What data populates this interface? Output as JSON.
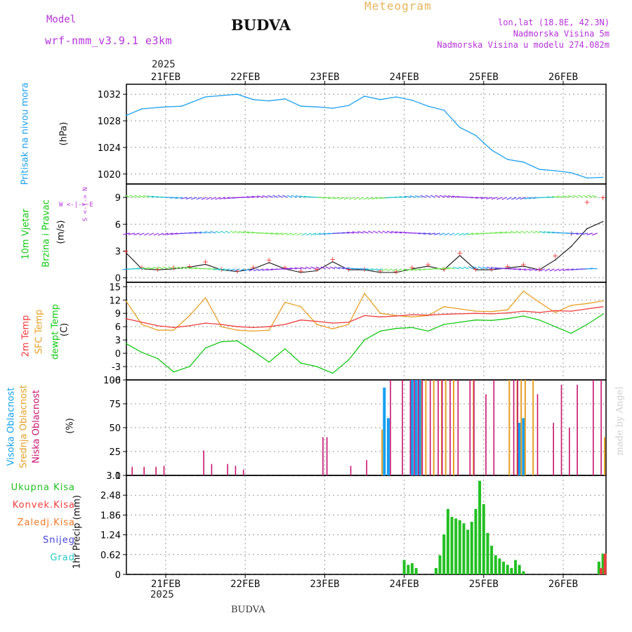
{
  "header": {
    "model_label": "Model",
    "model_name": "wrf-nmm_v3.9.1  e3km",
    "city": "BUDVA",
    "product": "Meteogram",
    "coords": "lon,lat (18.8E, 42.3N)",
    "elevation": "Nadmorska Visina 5m",
    "model_elevation": "Nadmorska Visina u modelu 274.082m",
    "footer_city": "BUDVA",
    "watermark": "made by Angel"
  },
  "colors": {
    "pressure": "#1ea0f0",
    "temp2m": "#f03c3c",
    "sfc": "#e6a028",
    "dew": "#14c814",
    "high_cloud": "#14a0f0",
    "mid_cloud": "#e6a028",
    "low_cloud": "#c8146e",
    "precip": "#22c022",
    "conv": "#f03c3c",
    "freezing": "#f07828",
    "snow": "#4646dc",
    "graupel": "#28c8c8",
    "label_purple": "#b432dc"
  },
  "axis": {
    "year": "2025",
    "days": [
      "21FEB",
      "22FEB",
      "23FEB",
      "24FEB",
      "25FEB",
      "26FEB"
    ]
  },
  "panels": {
    "pressure": {
      "label": "Pritisak na nivou mora",
      "unit": "(hPa)"
    },
    "wind": {
      "label1": "10m Vjetar",
      "label2": "Brzina i Pravac",
      "unit": "(m/s)",
      "compass": "W <-|-> E",
      "compass_vert": "S <-|-> N"
    },
    "temp": {
      "label1": "2m Temp",
      "label2": "SFC Temp",
      "label3": "dewpt Temp",
      "unit": "(C)"
    },
    "cloud": {
      "label1": "Visoka Oblacnost",
      "label2": "Srednja Oblacnost",
      "label3": "Niska Oblacnost",
      "unit": "(%)"
    },
    "precip": {
      "unit": "1hr Precip (mm)",
      "legend": [
        "Ukupna Kisa",
        "Konvek.Kisa",
        "Zaledj.Kisa",
        "Snijeg",
        "Grad"
      ]
    }
  },
  "chart_data": [
    {
      "type": "line",
      "title": "Pritisak na nivou mora",
      "ylabel": "(hPa)",
      "ylim": [
        1018.5,
        1033.5
      ],
      "yticks": [
        1020,
        1024,
        1028,
        1032
      ],
      "x": [
        20.5,
        20.7,
        20.9,
        21.0,
        21.2,
        21.5,
        21.7,
        21.9,
        22.1,
        22.3,
        22.5,
        22.7,
        22.9,
        23.1,
        23.3,
        23.5,
        23.7,
        23.9,
        24.1,
        24.3,
        24.5,
        24.7,
        24.9,
        25.1,
        25.3,
        25.5,
        25.7,
        25.9,
        26.1,
        26.3,
        26.5
      ],
      "values": [
        1028.8,
        1029.8,
        1030.0,
        1030.1,
        1030.2,
        1031.6,
        1031.8,
        1032.0,
        1031.2,
        1031.0,
        1031.3,
        1030.2,
        1030.1,
        1029.9,
        1030.3,
        1031.7,
        1031.2,
        1031.6,
        1031.1,
        1030.2,
        1029.6,
        1027.0,
        1025.8,
        1023.6,
        1022.2,
        1021.8,
        1020.7,
        1020.5,
        1020.2,
        1019.4,
        1019.5
      ]
    },
    {
      "type": "line",
      "title": "10m Vjetar Brzina i Pravac",
      "ylabel": "(m/s)",
      "ylim": [
        -0.5,
        10.5
      ],
      "yticks": [
        0,
        3,
        6,
        9
      ],
      "x": [
        20.5,
        20.7,
        20.9,
        21.1,
        21.3,
        21.5,
        21.7,
        21.9,
        22.1,
        22.3,
        22.5,
        22.7,
        22.9,
        23.1,
        23.3,
        23.5,
        23.7,
        23.9,
        24.1,
        24.3,
        24.5,
        24.7,
        24.9,
        25.1,
        25.3,
        25.5,
        25.7,
        25.9,
        26.1,
        26.3,
        26.5
      ],
      "series": [
        {
          "name": "wind speed",
          "values": [
            3.0,
            1.2,
            1.0,
            1.2,
            1.3,
            1.8,
            1.0,
            0.8,
            1.2,
            2.0,
            1.2,
            0.8,
            1.0,
            2.1,
            1.0,
            1.0,
            0.8,
            0.7,
            1.2,
            1.5,
            1.0,
            2.8,
            1.0,
            1.0,
            1.3,
            1.5,
            1.0,
            2.5,
            5.0,
            8.5,
            9.0
          ]
        },
        {
          "name": "gust",
          "values": [
            2.8,
            1.0,
            0.9,
            1.0,
            1.2,
            1.5,
            0.9,
            0.7,
            1.0,
            1.7,
            1.0,
            0.6,
            0.8,
            1.8,
            0.9,
            0.9,
            0.6,
            0.6,
            1.0,
            1.3,
            0.9,
            2.5,
            0.9,
            0.9,
            1.1,
            1.3,
            0.9,
            2.0,
            3.5,
            5.5,
            6.3
          ]
        }
      ]
    },
    {
      "type": "line",
      "title": "2m / SFC / dewpt Temp",
      "ylabel": "(C)",
      "ylim": [
        -6,
        16
      ],
      "yticks": [
        -6,
        -3,
        0,
        3,
        6,
        9,
        12,
        15
      ],
      "x": [
        20.5,
        20.7,
        20.9,
        21.1,
        21.3,
        21.5,
        21.7,
        21.9,
        22.1,
        22.3,
        22.5,
        22.7,
        22.9,
        23.1,
        23.3,
        23.5,
        23.7,
        23.9,
        24.1,
        24.3,
        24.5,
        24.7,
        24.9,
        25.1,
        25.3,
        25.5,
        25.7,
        25.9,
        26.1,
        26.3,
        26.5
      ],
      "series": [
        {
          "name": "2m Temp",
          "values": [
            7.8,
            7.0,
            6.2,
            5.8,
            6.2,
            6.8,
            6.5,
            6.0,
            5.8,
            6.0,
            6.5,
            7.5,
            7.2,
            6.8,
            7.0,
            8.5,
            8.2,
            8.4,
            8.7,
            8.6,
            8.8,
            8.9,
            9.0,
            8.9,
            9.1,
            9.5,
            9.2,
            9.6,
            9.5,
            10.0,
            10.5
          ]
        },
        {
          "name": "SFC Temp",
          "values": [
            11.8,
            6.5,
            5.2,
            5.2,
            8.5,
            12.5,
            6.0,
            5.2,
            5.0,
            5.2,
            11.5,
            10.5,
            6.5,
            5.5,
            6.5,
            13.5,
            9.0,
            8.5,
            8.2,
            8.5,
            10.5,
            10.0,
            9.5,
            9.4,
            9.8,
            14.0,
            11.5,
            9.2,
            10.8,
            11.2,
            11.8
          ]
        },
        {
          "name": "dewpt Temp",
          "values": [
            2.2,
            0.2,
            -1.2,
            -4.2,
            -3.0,
            1.2,
            2.6,
            2.8,
            0.5,
            -2.0,
            1.0,
            -2.2,
            -3.0,
            -4.5,
            -1.5,
            3.0,
            5.0,
            5.6,
            5.8,
            5.0,
            6.5,
            7.0,
            7.5,
            7.4,
            7.8,
            8.4,
            7.5,
            6.0,
            4.5,
            6.5,
            8.8
          ]
        }
      ]
    },
    {
      "type": "bar",
      "title": "Visoka / Srednja / Niska Oblacnost",
      "ylabel": "(%)",
      "ylim": [
        0,
        100
      ],
      "yticks": [
        0,
        25,
        50,
        75,
        100
      ],
      "x": [
        20.6,
        20.75,
        20.9,
        21.0,
        21.5,
        21.6,
        21.8,
        21.9,
        22.0,
        23.0,
        23.05,
        23.35,
        23.55,
        23.6,
        23.7,
        23.75,
        23.8,
        23.85,
        24.0,
        24.1,
        24.15,
        24.2,
        24.25,
        24.35,
        24.45,
        24.5,
        24.6,
        24.7,
        24.85,
        24.9,
        25.05,
        25.15,
        25.3,
        25.4,
        25.45,
        25.5,
        25.6,
        25.7,
        25.9,
        26.0,
        26.1,
        26.2,
        26.4,
        26.5
      ],
      "series": [
        {
          "name": "Visoka Oblacnost",
          "values": [
            0,
            0,
            0,
            0,
            0,
            0,
            0,
            0,
            0,
            0,
            0,
            0,
            0,
            0,
            0,
            92,
            60,
            0,
            0,
            100,
            100,
            100,
            0,
            0,
            0,
            0,
            0,
            0,
            0,
            0,
            0,
            0,
            0,
            0,
            55,
            60,
            0,
            0,
            0,
            0,
            0,
            0,
            0,
            0
          ]
        },
        {
          "name": "Srednja Oblacnost",
          "values": [
            0,
            0,
            0,
            0,
            0,
            0,
            0,
            0,
            0,
            0,
            0,
            0,
            0,
            0,
            48,
            0,
            0,
            0,
            0,
            0,
            0,
            100,
            100,
            100,
            100,
            100,
            100,
            0,
            100,
            0,
            0,
            0,
            100,
            100,
            100,
            100,
            100,
            0,
            0,
            0,
            0,
            0,
            0,
            40
          ]
        },
        {
          "name": "Niska Oblacnost",
          "values": [
            9,
            9,
            9,
            10,
            26,
            12,
            12,
            10,
            6,
            40,
            40,
            10,
            16,
            0,
            0,
            0,
            0,
            100,
            100,
            100,
            100,
            100,
            100,
            100,
            100,
            100,
            100,
            100,
            100,
            100,
            85,
            100,
            0,
            100,
            100,
            0,
            0,
            85,
            55,
            95,
            50,
            95,
            100,
            100
          ]
        }
      ]
    },
    {
      "type": "bar",
      "title": "1hr Precip",
      "ylabel": "1hr Precip (mm)",
      "ylim": [
        0,
        3.1
      ],
      "yticks": [
        0,
        0.62,
        1.24,
        1.86,
        2.48,
        3.1
      ],
      "x": [
        24.0,
        24.05,
        24.1,
        24.15,
        24.4,
        24.45,
        24.5,
        24.55,
        24.6,
        24.65,
        24.7,
        24.75,
        24.8,
        24.85,
        24.9,
        24.95,
        25.0,
        25.05,
        25.1,
        25.15,
        25.2,
        25.25,
        25.3,
        25.35,
        25.4,
        25.45,
        25.5,
        26.45,
        26.5
      ],
      "series": [
        {
          "name": "Ukupna Kisa",
          "values": [
            0.45,
            0.3,
            0.35,
            0.2,
            0.2,
            0.6,
            1.25,
            2.05,
            1.8,
            1.75,
            1.7,
            1.6,
            1.4,
            1.65,
            2.05,
            2.93,
            2.2,
            1.3,
            0.9,
            0.6,
            0.5,
            0.4,
            0.3,
            0.2,
            0.45,
            0.3,
            0.1,
            0.4,
            0.65
          ]
        },
        {
          "name": "Konvek.Kisa",
          "values": [
            0,
            0,
            0,
            0,
            0,
            0,
            0,
            0,
            0,
            0,
            0,
            0,
            0,
            0,
            0,
            0,
            0,
            0,
            0,
            0,
            0,
            0,
            0,
            0,
            0,
            0,
            0,
            0.2,
            0.65
          ]
        }
      ]
    }
  ]
}
